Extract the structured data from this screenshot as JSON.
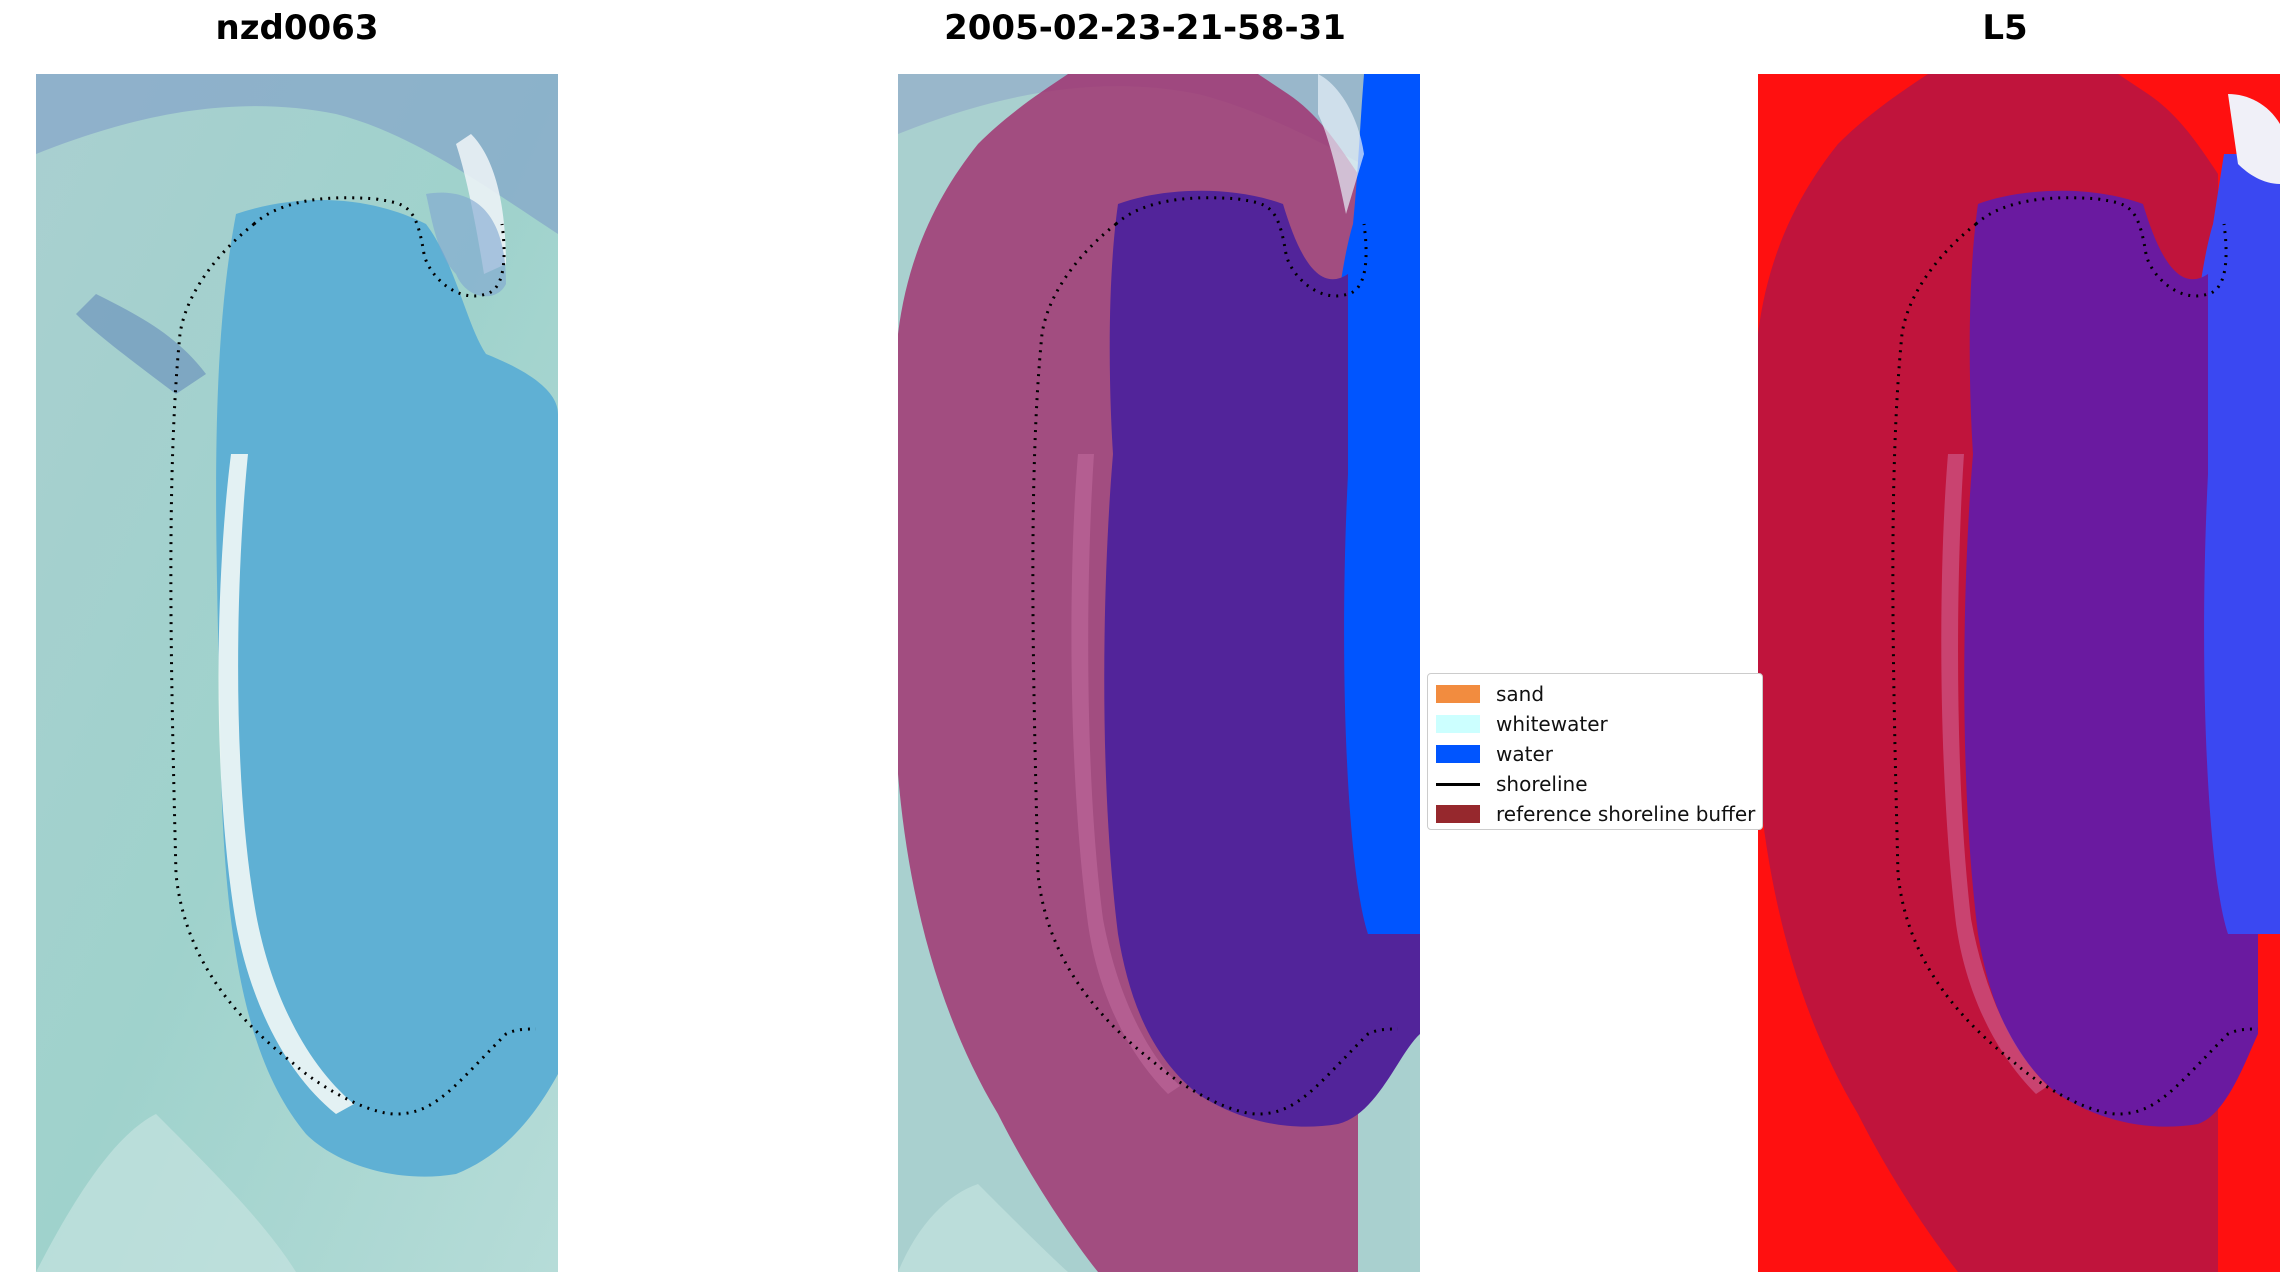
{
  "panels": [
    {
      "title": "nzd0063"
    },
    {
      "title": "2005-02-23-21-58-31"
    },
    {
      "title": "L5"
    }
  ],
  "legend": {
    "items": [
      {
        "label": "sand",
        "color": "#f28c3f",
        "kind": "patch"
      },
      {
        "label": "whitewater",
        "color": "#ccffff",
        "kind": "patch"
      },
      {
        "label": "water",
        "color": "#0055ff",
        "kind": "patch"
      },
      {
        "label": "shoreline",
        "color": "#000000",
        "kind": "line"
      },
      {
        "label": "reference shoreline buffer",
        "color": "#96282d",
        "kind": "patch"
      }
    ]
  },
  "colors": {
    "image_base": "#8fc6c4",
    "lagoon": "#5fb0d4",
    "buffer_overlay": "#a0306e",
    "lagoon_classified": "#52249a",
    "water_class": "#0055ff",
    "l5_background": "#ff1010",
    "l5_buffer": "#c0143c",
    "l5_water": "#3a48f2"
  }
}
